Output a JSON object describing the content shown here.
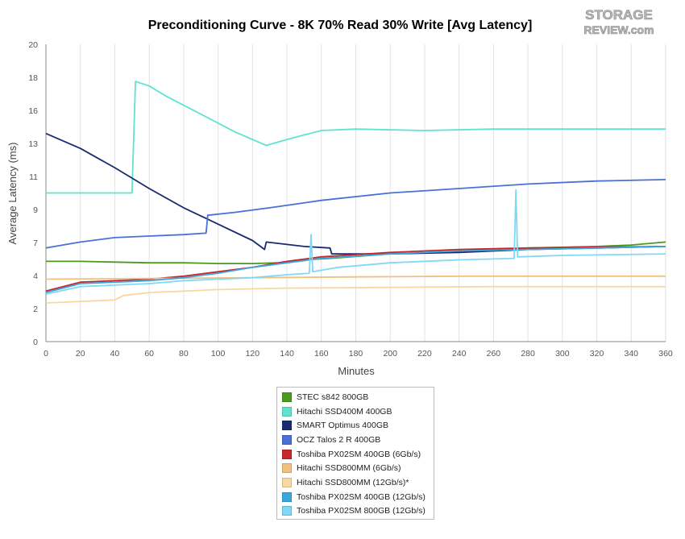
{
  "chart_data": {
    "type": "line",
    "title": "Preconditioning Curve - 8K 70% Read 30% Write [Avg Latency]",
    "xlabel": "Minutes",
    "ylabel": "Average Latency (ms)",
    "xlim": [
      0,
      360
    ],
    "ylim": [
      0,
      20
    ],
    "x_ticks": [
      "0",
      "20",
      "40",
      "60",
      "80",
      "100",
      "120",
      "140",
      "160",
      "180",
      "200",
      "220",
      "240",
      "260",
      "280",
      "300",
      "320",
      "340",
      "360"
    ],
    "y_ticks": [
      "0",
      "2",
      "4",
      "7",
      "9",
      "11",
      "13",
      "16",
      "18",
      "20"
    ],
    "grid": "vertical",
    "legend_position": "bottom-center",
    "series": [
      {
        "name": "STEC s842 800GB",
        "color": "#4a9a1e",
        "points": [
          [
            0,
            5.4
          ],
          [
            20,
            5.4
          ],
          [
            40,
            5.35
          ],
          [
            60,
            5.3
          ],
          [
            80,
            5.3
          ],
          [
            100,
            5.25
          ],
          [
            120,
            5.25
          ],
          [
            135,
            5.3
          ],
          [
            150,
            5.5
          ],
          [
            165,
            5.6
          ],
          [
            200,
            5.9
          ],
          [
            240,
            6.1
          ],
          [
            280,
            6.3
          ],
          [
            320,
            6.4
          ],
          [
            340,
            6.5
          ],
          [
            360,
            6.7
          ]
        ]
      },
      {
        "name": "Hitachi SSD400M 400GB",
        "color": "#5fe3d0",
        "points": [
          [
            0,
            10
          ],
          [
            25,
            10
          ],
          [
            50,
            10
          ],
          [
            52,
            17.5
          ],
          [
            60,
            17.2
          ],
          [
            70,
            16.5
          ],
          [
            90,
            15.3
          ],
          [
            110,
            14.1
          ],
          [
            128,
            13.2
          ],
          [
            140,
            13.6
          ],
          [
            160,
            14.2
          ],
          [
            180,
            14.3
          ],
          [
            220,
            14.2
          ],
          [
            260,
            14.3
          ],
          [
            300,
            14.3
          ],
          [
            340,
            14.3
          ],
          [
            360,
            14.3
          ]
        ]
      },
      {
        "name": "SMART Optimus 400GB",
        "color": "#1a2a70",
        "points": [
          [
            0,
            14
          ],
          [
            20,
            13
          ],
          [
            40,
            11.7
          ],
          [
            60,
            10.3
          ],
          [
            80,
            9.0
          ],
          [
            100,
            7.9
          ],
          [
            120,
            6.8
          ],
          [
            127,
            6.2
          ],
          [
            128,
            6.7
          ],
          [
            150,
            6.4
          ],
          [
            165,
            6.3
          ],
          [
            166,
            5.9
          ],
          [
            200,
            5.9
          ],
          [
            240,
            6.0
          ],
          [
            280,
            6.2
          ],
          [
            320,
            6.3
          ],
          [
            360,
            6.4
          ]
        ]
      },
      {
        "name": "OCZ Talos 2 R 400GB",
        "color": "#4a6fd8",
        "points": [
          [
            0,
            6.3
          ],
          [
            20,
            6.7
          ],
          [
            40,
            7.0
          ],
          [
            60,
            7.1
          ],
          [
            80,
            7.2
          ],
          [
            93,
            7.3
          ],
          [
            94,
            8.5
          ],
          [
            110,
            8.7
          ],
          [
            130,
            9.0
          ],
          [
            160,
            9.5
          ],
          [
            200,
            10.0
          ],
          [
            240,
            10.3
          ],
          [
            280,
            10.6
          ],
          [
            320,
            10.8
          ],
          [
            360,
            10.9
          ]
        ]
      },
      {
        "name": "Toshiba PX02SM 400GB (6Gb/s)",
        "color": "#c8262a",
        "points": [
          [
            0,
            3.4
          ],
          [
            20,
            4.0
          ],
          [
            40,
            4.1
          ],
          [
            60,
            4.2
          ],
          [
            80,
            4.4
          ],
          [
            100,
            4.7
          ],
          [
            120,
            5.0
          ],
          [
            140,
            5.4
          ],
          [
            160,
            5.7
          ],
          [
            200,
            6.0
          ],
          [
            240,
            6.2
          ],
          [
            280,
            6.3
          ],
          [
            320,
            6.35
          ],
          [
            360,
            6.4
          ]
        ]
      },
      {
        "name": "Hitachi SSD800MM (6Gb/s)",
        "color": "#f0c080",
        "points": [
          [
            0,
            4.2
          ],
          [
            60,
            4.25
          ],
          [
            120,
            4.3
          ],
          [
            180,
            4.35
          ],
          [
            240,
            4.4
          ],
          [
            300,
            4.4
          ],
          [
            360,
            4.4
          ]
        ]
      },
      {
        "name": "Hitachi SSD800MM (12Gb/s)*",
        "color": "#f8d8a0",
        "points": [
          [
            0,
            2.6
          ],
          [
            20,
            2.7
          ],
          [
            40,
            2.8
          ],
          [
            45,
            3.1
          ],
          [
            60,
            3.3
          ],
          [
            80,
            3.4
          ],
          [
            100,
            3.5
          ],
          [
            140,
            3.6
          ],
          [
            200,
            3.65
          ],
          [
            260,
            3.7
          ],
          [
            360,
            3.7
          ]
        ]
      },
      {
        "name": "Toshiba PX02SM 400GB (12Gb/s)",
        "color": "#3aa8e0",
        "points": [
          [
            0,
            3.3
          ],
          [
            20,
            3.9
          ],
          [
            40,
            4.0
          ],
          [
            60,
            4.1
          ],
          [
            80,
            4.3
          ],
          [
            100,
            4.6
          ],
          [
            120,
            5.0
          ],
          [
            140,
            5.3
          ],
          [
            160,
            5.6
          ],
          [
            200,
            5.9
          ],
          [
            240,
            6.1
          ],
          [
            280,
            6.2
          ],
          [
            320,
            6.3
          ],
          [
            360,
            6.4
          ]
        ]
      },
      {
        "name": "Toshiba PX02SM 800GB (12Gb/s)",
        "color": "#7fd8f5",
        "points": [
          [
            0,
            3.2
          ],
          [
            20,
            3.7
          ],
          [
            40,
            3.8
          ],
          [
            60,
            3.9
          ],
          [
            80,
            4.1
          ],
          [
            100,
            4.2
          ],
          [
            120,
            4.3
          ],
          [
            140,
            4.5
          ],
          [
            153,
            4.6
          ],
          [
            154,
            7.2
          ],
          [
            155,
            4.7
          ],
          [
            170,
            5.0
          ],
          [
            200,
            5.3
          ],
          [
            240,
            5.5
          ],
          [
            272,
            5.6
          ],
          [
            273,
            10.2
          ],
          [
            274,
            5.7
          ],
          [
            300,
            5.8
          ],
          [
            330,
            5.85
          ],
          [
            360,
            5.9
          ]
        ]
      }
    ]
  },
  "branding": {
    "logo_line1": "STORAGE",
    "logo_line2": "REVIEW.com"
  }
}
